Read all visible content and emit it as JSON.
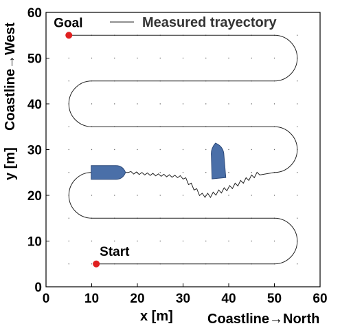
{
  "chart_data": {
    "type": "line",
    "title": "",
    "xlabel": "x [m]",
    "ylabel": "y [m]",
    "x_direction_label": "Coastline→North",
    "y_direction_label": "Coastline→West",
    "xlim": [
      0,
      60
    ],
    "ylim": [
      0,
      60
    ],
    "xticks": [
      0,
      10,
      20,
      30,
      40,
      50,
      60
    ],
    "yticks": [
      0,
      10,
      20,
      30,
      40,
      50,
      60
    ],
    "grid": "dotted",
    "legend": {
      "position": "top-right",
      "entries": [
        "Measured trayectory"
      ]
    },
    "series": [
      {
        "name": "Measured trayectory",
        "color": "#000000",
        "path_description": "serpentine lawn-mower pattern from Start to Goal with a zig-zag section between the two vessels",
        "waypoints": [
          [
            11,
            5
          ],
          [
            50,
            5
          ],
          [
            50,
            15
          ],
          [
            10,
            15
          ],
          [
            10,
            25
          ],
          [
            18,
            25
          ],
          [
            30,
            24
          ],
          [
            34,
            20
          ],
          [
            41,
            22
          ],
          [
            47,
            25
          ],
          [
            50,
            25
          ],
          [
            50,
            35
          ],
          [
            10,
            35
          ],
          [
            10,
            45
          ],
          [
            50,
            45
          ],
          [
            50,
            55
          ],
          [
            5,
            55
          ]
        ]
      }
    ],
    "markers": [
      {
        "label": "Start",
        "x": 11,
        "y": 5,
        "color": "#e02020"
      },
      {
        "label": "Goal",
        "x": 5,
        "y": 55,
        "color": "#e02020"
      }
    ],
    "vessels": [
      {
        "name": "horizontal-boat",
        "x": 13.5,
        "y": 25,
        "heading": "east",
        "color": "#4a6fa8"
      },
      {
        "name": "vertical-boat",
        "x": 38,
        "y": 27.5,
        "heading": "north",
        "color": "#4a6fa8"
      }
    ]
  }
}
